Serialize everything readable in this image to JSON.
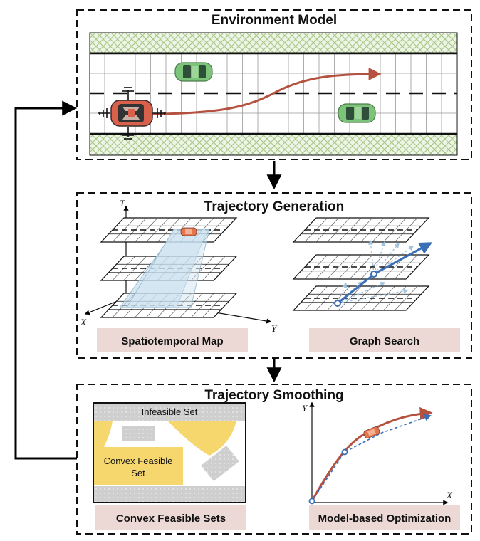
{
  "panels": {
    "environment": {
      "title": "Environment Model"
    },
    "generation": {
      "title": "Trajectory Generation",
      "axis_t": "T",
      "axis_x": "X",
      "axis_y": "Y",
      "caption_left": "Spatiotemporal Map",
      "caption_right": "Graph Search"
    },
    "smoothing": {
      "title": "Trajectory Smoothing",
      "infeasible_label": "Infeasible Set",
      "convex_label_line1": "Convex Feasible",
      "convex_label_line2": "Set",
      "caption_left": "Convex Feasible Sets",
      "caption_right": "Model-based Optimization",
      "axis_x": "X",
      "axis_y": "Y"
    }
  },
  "colors": {
    "ego_car": "#d9604a",
    "other_car": "#7cc47a",
    "trajectory": "#b5523f",
    "search_path": "#3a6fb5",
    "feasible_region": "#f5d76e",
    "caption_bg": "#ecd9d6",
    "hatch": "#a8c98a",
    "obstacle": "#d6d6d6"
  }
}
